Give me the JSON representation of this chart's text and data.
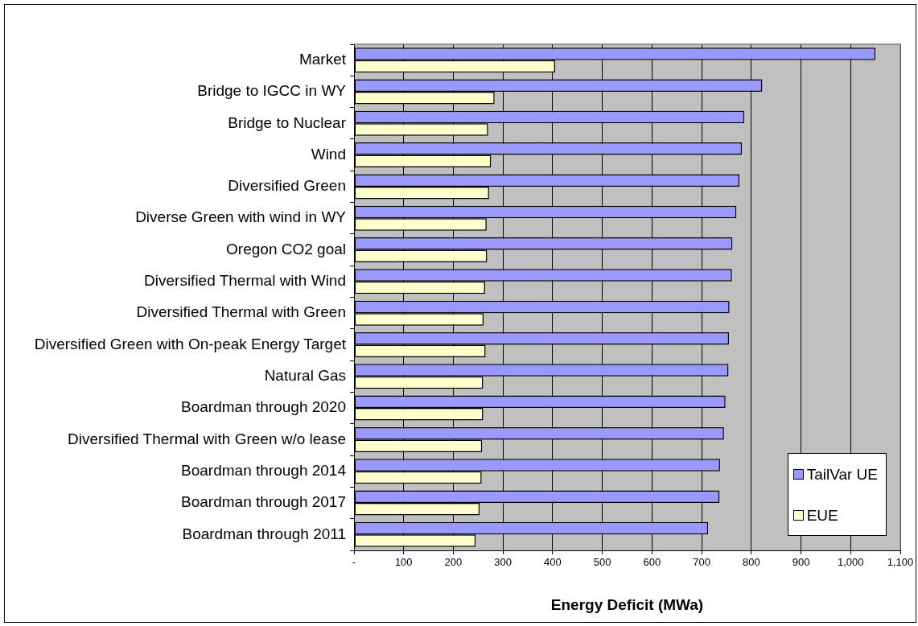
{
  "chart_data": {
    "type": "bar",
    "orientation": "horizontal",
    "categories": [
      "Market",
      "Bridge to IGCC in WY",
      "Bridge to Nuclear",
      "Wind",
      "Diversified Green",
      "Diverse Green with wind in WY",
      "Oregon CO2 goal",
      "Diversified Thermal with Wind",
      "Diversified Thermal with Green",
      "Diversified Green with On-peak Energy Target",
      "Natural Gas",
      "Boardman through 2020",
      "Diversified Thermal with Green w/o lease",
      "Boardman through 2014",
      "Boardman through 2017",
      "Boardman through 2011"
    ],
    "series": [
      {
        "name": "TailVar UE",
        "color": "#9999ff",
        "values": [
          1050,
          822,
          786,
          781,
          776,
          770,
          762,
          761,
          756,
          755,
          754,
          748,
          745,
          737,
          736,
          713
        ]
      },
      {
        "name": "EUE",
        "color": "#ffffcc",
        "values": [
          405,
          283,
          270,
          276,
          272,
          267,
          268,
          264,
          261,
          265,
          260,
          260,
          258,
          257,
          253,
          245
        ]
      }
    ],
    "xlabel": "Energy Deficit (MWa)",
    "xlim": [
      0,
      1100
    ],
    "xticks": [
      {
        "value": 0,
        "label": "-"
      },
      100,
      200,
      300,
      400,
      500,
      600,
      700,
      800,
      900,
      {
        "value": 1000,
        "label": "1,000"
      },
      {
        "value": 1100,
        "label": "1,100"
      }
    ],
    "grid": "x",
    "legend": "bottom right"
  }
}
